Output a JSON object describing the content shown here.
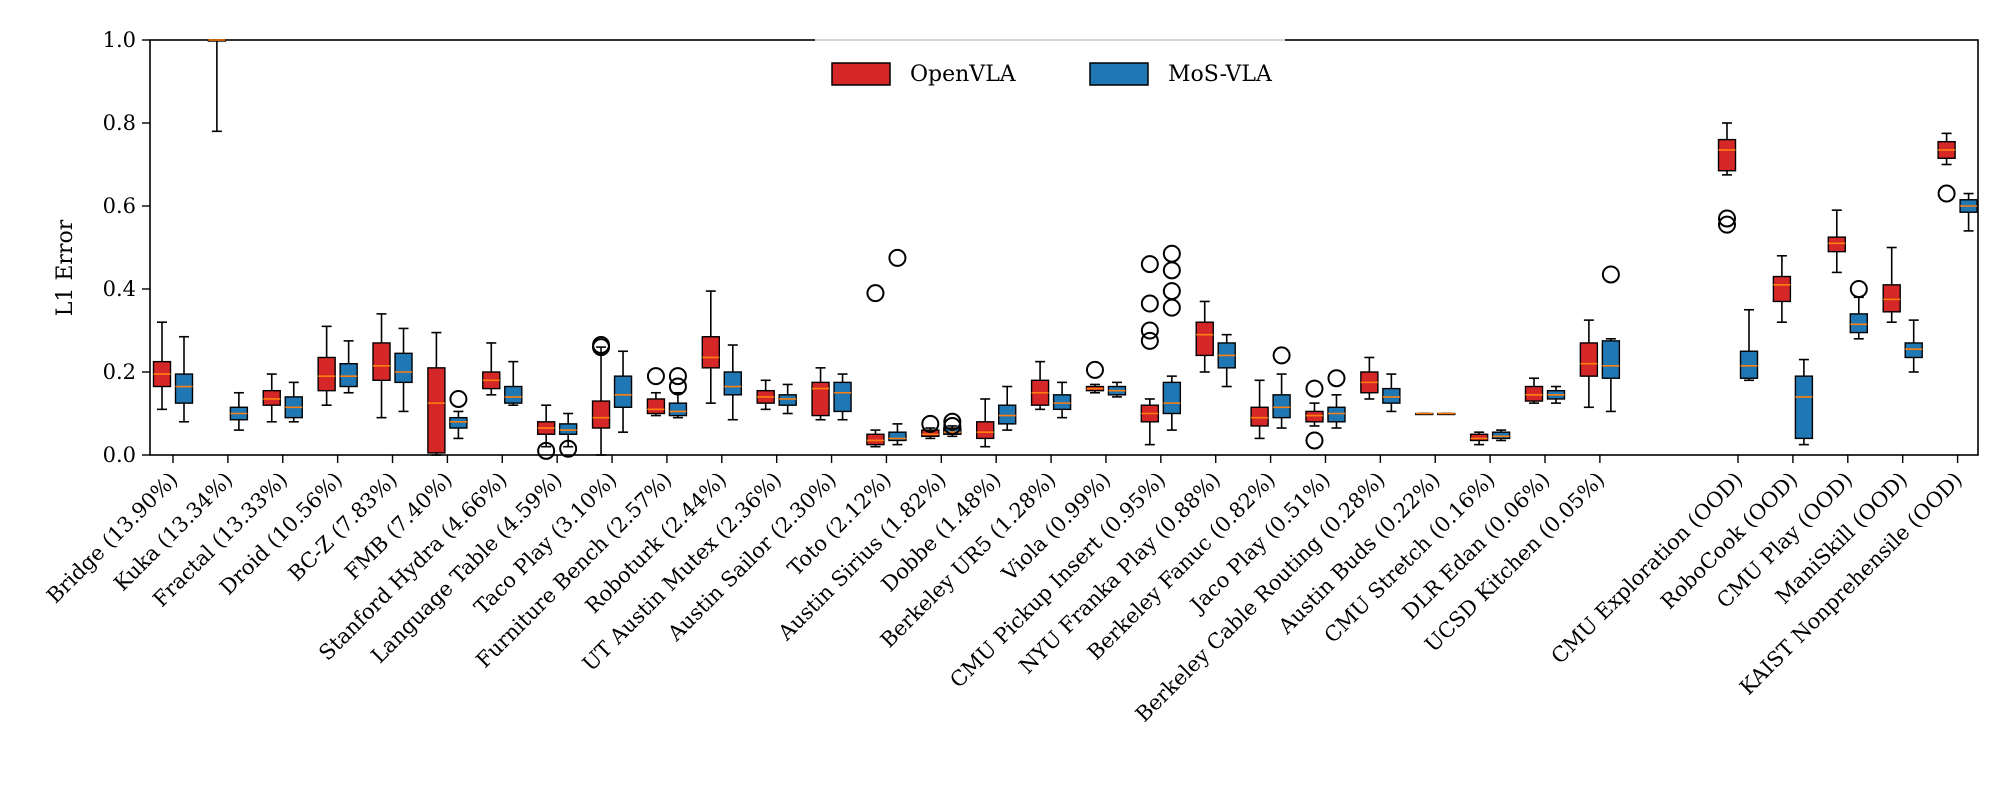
{
  "chart_data": {
    "type": "boxplot",
    "title": "",
    "xlabel": "",
    "ylabel": "L1 Error",
    "ylim": [
      0,
      1.0
    ],
    "yticks": [
      "0.0",
      "0.2",
      "0.4",
      "0.6",
      "0.8",
      "1.0"
    ],
    "grid": false,
    "legend_position": "top-center",
    "series": [
      {
        "name": "OpenVLA",
        "color": "#d62728"
      },
      {
        "name": "MoS-VLA",
        "color": "#1f77b4"
      }
    ],
    "median_color": "#ff7f0e",
    "categories": [
      "Bridge (13.90%)",
      "Kuka (13.34%)",
      "Fractal (13.33%)",
      "Droid (10.56%)",
      "BC-Z (7.83%)",
      "FMB (7.40%)",
      "Stanford Hydra (4.66%)",
      "Language Table (4.59%)",
      "Taco Play (3.10%)",
      "Furniture Bench (2.57%)",
      "Roboturk (2.44%)",
      "UT Austin Mutex (2.36%)",
      "Austin Sailor (2.30%)",
      "Toto (2.12%)",
      "Austin Sirius (1.82%)",
      "Dobbe (1.48%)",
      "Berkeley UR5 (1.28%)",
      "Viola (0.99%)",
      "CMU Pickup Insert (0.95%)",
      "NYU Franka Play (0.88%)",
      "Berkeley Fanuc (0.82%)",
      "Jaco Play (0.51%)",
      "Berkeley Cable Routing (0.28%)",
      "Austin Buds (0.22%)",
      "CMU Stretch (0.16%)",
      "DLR Edan (0.06%)",
      "UCSD Kitchen (0.05%)",
      "CMU Exploration (OOD)",
      "RoboCook (OOD)",
      "CMU Play (OOD)",
      "ManiSkill (OOD)",
      "KAIST Nonprehensile (OOD)"
    ],
    "boxes": [
      [
        [
          0.11,
          0.165,
          0.195,
          0.225,
          0.32,
          []
        ],
        [
          0.08,
          0.125,
          0.165,
          0.195,
          0.285,
          []
        ]
      ],
      [
        [
          0.78,
          1.0,
          1.0,
          1.0,
          1.0,
          []
        ],
        [
          0.06,
          0.085,
          0.1,
          0.115,
          0.15,
          []
        ]
      ],
      [
        [
          0.08,
          0.12,
          0.135,
          0.155,
          0.195,
          []
        ],
        [
          0.08,
          0.09,
          0.115,
          0.14,
          0.175,
          []
        ]
      ],
      [
        [
          0.12,
          0.155,
          0.19,
          0.235,
          0.31,
          []
        ],
        [
          0.15,
          0.165,
          0.19,
          0.22,
          0.275,
          []
        ]
      ],
      [
        [
          0.09,
          0.18,
          0.215,
          0.27,
          0.34,
          []
        ],
        [
          0.105,
          0.175,
          0.2,
          0.245,
          0.305,
          []
        ]
      ],
      [
        [
          0.0,
          0.005,
          0.125,
          0.21,
          0.295,
          []
        ],
        [
          0.04,
          0.065,
          0.08,
          0.09,
          0.105,
          [
            0.135
          ]
        ]
      ],
      [
        [
          0.145,
          0.16,
          0.18,
          0.2,
          0.27,
          []
        ],
        [
          0.12,
          0.125,
          0.14,
          0.165,
          0.225,
          []
        ]
      ],
      [
        [
          0.02,
          0.05,
          0.065,
          0.08,
          0.12,
          [
            0.01
          ]
        ],
        [
          0.02,
          0.05,
          0.06,
          0.075,
          0.1,
          [
            0.015
          ]
        ]
      ],
      [
        [
          0.0,
          0.065,
          0.09,
          0.13,
          0.26,
          [
            0.26,
            0.265
          ]
        ],
        [
          0.055,
          0.115,
          0.145,
          0.19,
          0.25,
          []
        ]
      ],
      [
        [
          0.095,
          0.1,
          0.11,
          0.135,
          0.15,
          [
            0.19
          ]
        ],
        [
          0.09,
          0.095,
          0.105,
          0.125,
          0.15,
          [
            0.165,
            0.19
          ]
        ]
      ],
      [
        [
          0.125,
          0.21,
          0.235,
          0.285,
          0.395,
          []
        ],
        [
          0.085,
          0.145,
          0.165,
          0.2,
          0.265,
          []
        ]
      ],
      [
        [
          0.11,
          0.125,
          0.14,
          0.155,
          0.18,
          []
        ],
        [
          0.1,
          0.12,
          0.135,
          0.145,
          0.17,
          []
        ]
      ],
      [
        [
          0.085,
          0.095,
          0.16,
          0.175,
          0.21,
          []
        ],
        [
          0.085,
          0.105,
          0.15,
          0.175,
          0.195,
          []
        ]
      ],
      [
        [
          0.02,
          0.025,
          0.035,
          0.05,
          0.06,
          [
            0.39
          ]
        ],
        [
          0.025,
          0.035,
          0.04,
          0.055,
          0.075,
          [
            0.475
          ]
        ]
      ],
      [
        [
          0.04,
          0.045,
          0.05,
          0.06,
          0.065,
          [
            0.075
          ]
        ],
        [
          0.045,
          0.05,
          0.055,
          0.065,
          0.07,
          [
            0.07,
            0.08
          ]
        ]
      ],
      [
        [
          0.02,
          0.04,
          0.055,
          0.08,
          0.135,
          []
        ],
        [
          0.06,
          0.075,
          0.095,
          0.12,
          0.165,
          []
        ]
      ],
      [
        [
          0.11,
          0.12,
          0.15,
          0.18,
          0.225,
          []
        ],
        [
          0.09,
          0.11,
          0.125,
          0.145,
          0.175,
          []
        ]
      ],
      [
        [
          0.15,
          0.155,
          0.16,
          0.165,
          0.17,
          [
            0.205
          ]
        ],
        [
          0.14,
          0.145,
          0.155,
          0.165,
          0.175,
          []
        ]
      ],
      [
        [
          0.025,
          0.08,
          0.1,
          0.12,
          0.135,
          [
            0.275,
            0.3,
            0.365,
            0.46
          ]
        ],
        [
          0.06,
          0.1,
          0.125,
          0.175,
          0.19,
          [
            0.355,
            0.395,
            0.445,
            0.485
          ]
        ]
      ],
      [
        [
          0.2,
          0.24,
          0.29,
          0.32,
          0.37,
          []
        ],
        [
          0.165,
          0.21,
          0.24,
          0.27,
          0.29,
          []
        ]
      ],
      [
        [
          0.04,
          0.07,
          0.09,
          0.115,
          0.18,
          []
        ],
        [
          0.065,
          0.09,
          0.115,
          0.145,
          0.195,
          [
            0.24
          ]
        ]
      ],
      [
        [
          0.07,
          0.08,
          0.095,
          0.105,
          0.125,
          [
            0.16,
            0.035
          ]
        ],
        [
          0.065,
          0.08,
          0.1,
          0.115,
          0.145,
          [
            0.185
          ]
        ]
      ],
      [
        [
          0.135,
          0.15,
          0.175,
          0.2,
          0.235,
          []
        ],
        [
          0.105,
          0.125,
          0.14,
          0.16,
          0.195,
          []
        ]
      ],
      [
        [
          0.1,
          0.1,
          0.1,
          0.1,
          0.1,
          []
        ],
        [
          0.1,
          0.1,
          0.1,
          0.1,
          0.1,
          []
        ]
      ],
      [
        [
          0.025,
          0.035,
          0.04,
          0.05,
          0.055,
          []
        ],
        [
          0.035,
          0.04,
          0.045,
          0.055,
          0.06,
          []
        ]
      ],
      [
        [
          0.125,
          0.13,
          0.145,
          0.165,
          0.185,
          []
        ],
        [
          0.125,
          0.135,
          0.145,
          0.155,
          0.165,
          []
        ]
      ],
      [
        [
          0.115,
          0.19,
          0.22,
          0.27,
          0.325,
          []
        ],
        [
          0.105,
          0.185,
          0.215,
          0.275,
          0.28,
          [
            0.435
          ]
        ]
      ],
      [
        [
          0.675,
          0.685,
          0.735,
          0.76,
          0.8,
          [
            0.555,
            0.57
          ]
        ],
        [
          0.18,
          0.185,
          0.215,
          0.25,
          0.35,
          []
        ]
      ],
      [
        [
          0.32,
          0.37,
          0.41,
          0.43,
          0.48,
          []
        ],
        [
          0.025,
          0.04,
          0.14,
          0.19,
          0.23,
          []
        ]
      ],
      [
        [
          0.44,
          0.49,
          0.51,
          0.525,
          0.59,
          []
        ],
        [
          0.28,
          0.295,
          0.315,
          0.34,
          0.38,
          [
            0.4
          ]
        ]
      ],
      [
        [
          0.32,
          0.345,
          0.375,
          0.41,
          0.5,
          []
        ],
        [
          0.2,
          0.235,
          0.255,
          0.27,
          0.325,
          []
        ]
      ],
      [
        [
          0.7,
          0.715,
          0.735,
          0.755,
          0.775,
          [
            0.63
          ]
        ],
        [
          0.54,
          0.585,
          0.6,
          0.615,
          0.63,
          []
        ]
      ]
    ]
  }
}
